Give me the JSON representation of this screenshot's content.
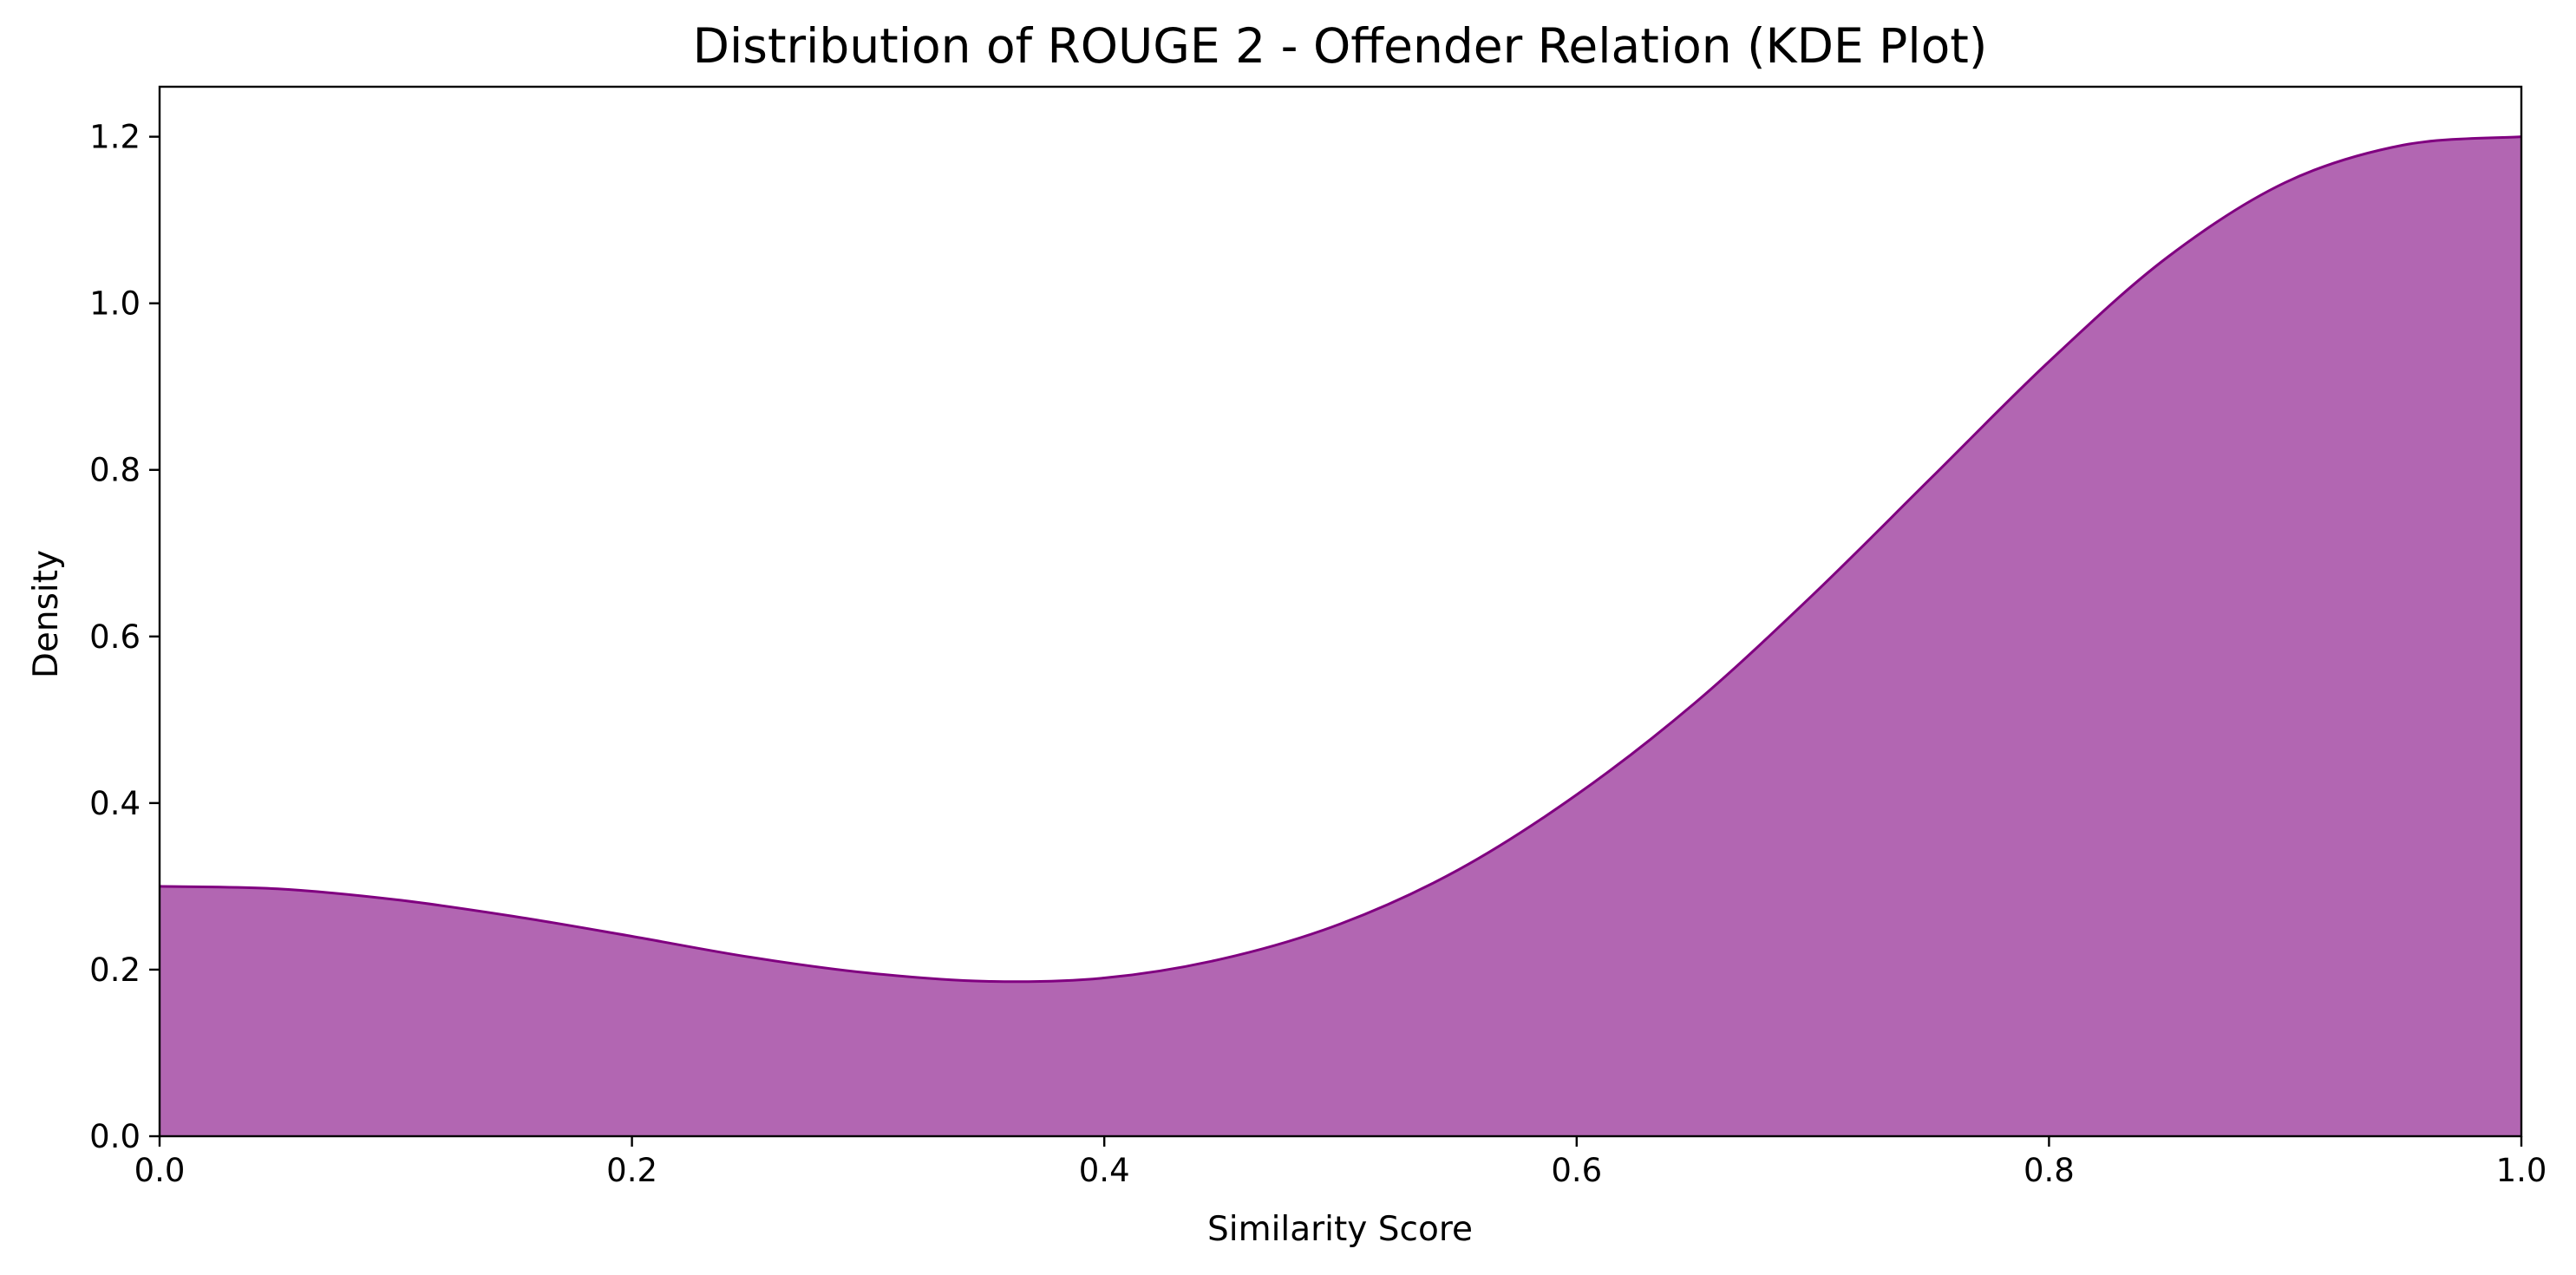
{
  "chart_data": {
    "type": "area",
    "title": "Distribution of ROUGE 2 - Offender Relation (KDE Plot)",
    "xlabel": "Similarity Score",
    "ylabel": "Density",
    "xlim": [
      0.0,
      1.0
    ],
    "ylim": [
      0.0,
      1.26
    ],
    "x_ticks": [
      "0.0",
      "0.2",
      "0.4",
      "0.6",
      "0.8",
      "1.0"
    ],
    "y_ticks": [
      "0.0",
      "0.2",
      "0.4",
      "0.6",
      "0.8",
      "1.0",
      "1.2"
    ],
    "grid": false,
    "fill_color": "#b266b2",
    "line_color": "#800080",
    "series": [
      {
        "x": [
          0.0,
          0.05,
          0.1,
          0.15,
          0.2,
          0.25,
          0.3,
          0.35,
          0.4,
          0.45,
          0.5,
          0.55,
          0.6,
          0.65,
          0.7,
          0.75,
          0.8,
          0.85,
          0.9,
          0.95,
          1.0
        ],
        "y": [
          0.3,
          0.297,
          0.284,
          0.264,
          0.24,
          0.215,
          0.196,
          0.186,
          0.19,
          0.213,
          0.255,
          0.32,
          0.41,
          0.52,
          0.65,
          0.79,
          0.93,
          1.055,
          1.145,
          1.19,
          1.2
        ]
      }
    ]
  }
}
